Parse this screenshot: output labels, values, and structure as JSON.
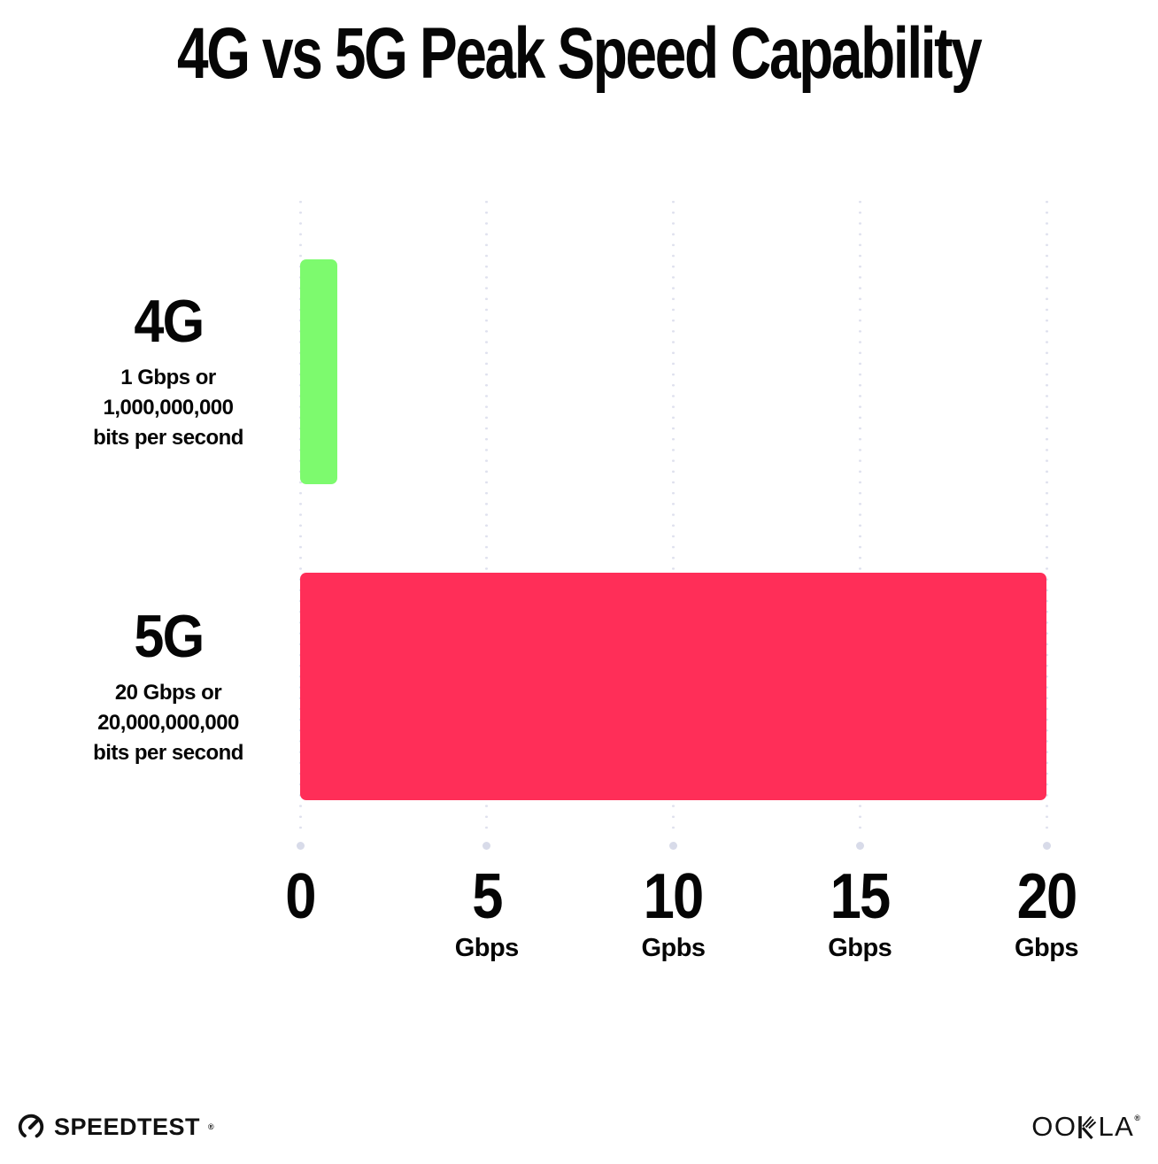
{
  "chart_data": {
    "type": "bar",
    "orientation": "horizontal",
    "title": "4G vs 5G Peak Speed Capability",
    "categories": [
      "4G",
      "5G"
    ],
    "values": [
      1,
      20
    ],
    "rows": [
      {
        "label": "4G",
        "sublabel_lines": [
          "1 Gbps or",
          "1,000,000,000",
          "bits per second"
        ],
        "value": 1,
        "color": "#7DFA6E"
      },
      {
        "label": "5G",
        "sublabel_lines": [
          "20 Gbps or",
          "20,000,000,000",
          "bits per second"
        ],
        "value": 20,
        "color": "#FF2E58"
      }
    ],
    "xlim": [
      0,
      20
    ],
    "x_ticks": [
      {
        "value": 0,
        "label": "0",
        "unit": ""
      },
      {
        "value": 5,
        "label": "5",
        "unit": "Gbps"
      },
      {
        "value": 10,
        "label": "10",
        "unit": "Gpbs"
      },
      {
        "value": 15,
        "label": "15",
        "unit": "Gbps"
      },
      {
        "value": 20,
        "label": "20",
        "unit": "Gbps"
      }
    ],
    "grid": "vertical-dotted",
    "legend": "none",
    "xlabel": "",
    "ylabel": ""
  },
  "colors": {
    "bar_4g": "#7DFA6E",
    "bar_5g": "#FF2E58",
    "grid_dot": "#DFE1EE",
    "grid_end_dot": "#D8DBE9",
    "text": "#050505",
    "background": "#FFFFFF"
  },
  "footer": {
    "speedtest_label": "SPEEDTEST",
    "speedtest_reg": "®",
    "ookla_left": "OO",
    "ookla_right": "LA",
    "ookla_reg": "®"
  }
}
